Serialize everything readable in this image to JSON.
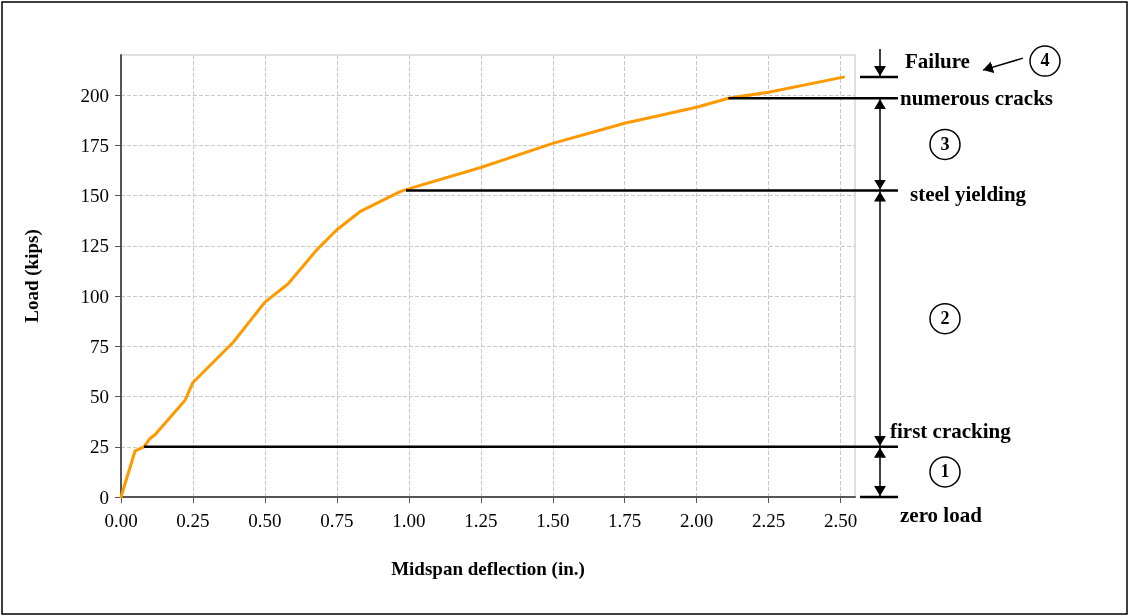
{
  "chart_data": {
    "type": "line",
    "xlabel": "Midspan deflection (in.)",
    "ylabel": "Load (kips)",
    "xlim": [
      0,
      2.55
    ],
    "ylim": [
      0,
      220
    ],
    "xticks": [
      {
        "value": 0,
        "label": "0.00"
      },
      {
        "value": 0.25,
        "label": "0.25"
      },
      {
        "value": 0.5,
        "label": "0.50"
      },
      {
        "value": 0.75,
        "label": "0.75"
      },
      {
        "value": 1,
        "label": "1.00"
      },
      {
        "value": 1.25,
        "label": "1.25"
      },
      {
        "value": 1.5,
        "label": "1.50"
      },
      {
        "value": 1.75,
        "label": "1.75"
      },
      {
        "value": 2,
        "label": "2.00"
      },
      {
        "value": 2.25,
        "label": "2.25"
      },
      {
        "value": 2.5,
        "label": "2.50"
      }
    ],
    "yticks": [
      0,
      25,
      50,
      75,
      100,
      125,
      150,
      175,
      200
    ],
    "grid": true,
    "marker": "none",
    "line_style": "solid",
    "series": [
      {
        "color": "#ff9900",
        "x": [
          0,
          0.049,
          0.08,
          0.1,
          0.118,
          0.222,
          0.25,
          0.39,
          0.5,
          0.58,
          0.68,
          0.75,
          0.83,
          0.97,
          0.99,
          1.25,
          1.5,
          1.75,
          2.0,
          2.11,
          2.25,
          2.51
        ],
        "values": [
          0,
          23,
          25,
          29,
          31,
          48,
          57,
          77,
          97,
          106,
          123,
          133,
          142,
          152,
          153,
          164,
          176,
          186,
          194,
          198.5,
          201.5,
          209
        ]
      }
    ],
    "ref_lines": [
      {
        "axis": "y",
        "value": 0,
        "label": "zero load",
        "color": "#000000"
      },
      {
        "axis": "y",
        "value": 25,
        "label": "first cracking",
        "color": "#000000"
      },
      {
        "axis": "y",
        "value": 152.5,
        "label": "steel yielding",
        "color": "#000000"
      },
      {
        "axis": "y",
        "value": 198.5,
        "label": "numerous cracks",
        "color": "#000000"
      },
      {
        "axis": "y",
        "value": 209,
        "label": "Failure",
        "color": "#000000"
      }
    ],
    "annotations": [
      "1",
      "2",
      "3",
      "4"
    ]
  }
}
